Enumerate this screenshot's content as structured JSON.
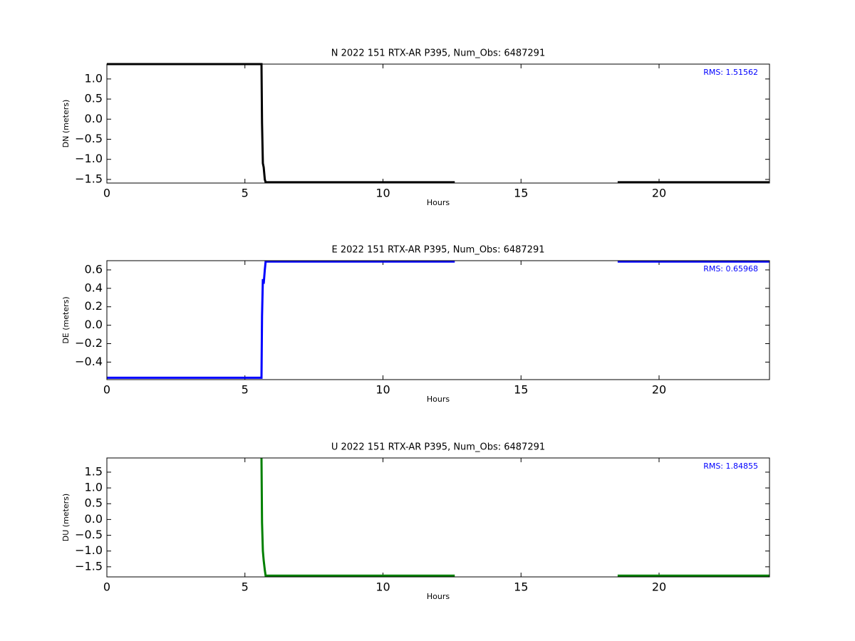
{
  "chart_data": [
    {
      "type": "line",
      "title": "N 2022 151 RTX-AR  P395, Num_Obs: 6487291",
      "xlabel": "Hours",
      "ylabel": "DN (meters)",
      "annotation": "RMS:  1.51562",
      "annotation_color": "#0000ff",
      "x": [
        0,
        5.6,
        5.62,
        5.65,
        5.68,
        5.72,
        5.75,
        12.6,
        15,
        18.5,
        24
      ],
      "values": [
        1.37,
        1.37,
        -0.1,
        -1.1,
        -1.2,
        -1.5,
        -1.57,
        -1.57,
        null,
        -1.57,
        -1.57
      ],
      "color": "#000000",
      "xlim": [
        0,
        24
      ],
      "xticks": [
        0,
        5,
        10,
        15,
        20
      ],
      "ylim": [
        -1.59,
        1.37
      ],
      "yticks": [
        {
          "value": -1.5,
          "label": "−1.5"
        },
        {
          "value": -1,
          "label": "−1.0"
        },
        {
          "value": -0.5,
          "label": "−0.5"
        },
        {
          "value": 0,
          "label": "0.0"
        },
        0.5,
        {
          "value": 1,
          "label": "1.0"
        }
      ]
    },
    {
      "type": "line",
      "title": "E 2022 151 RTX-AR  P395, Num_Obs: 6487291",
      "xlabel": "Hours",
      "ylabel": "DE (meters)",
      "annotation": "RMS:  0.65968",
      "annotation_color": "#0000ff",
      "x": [
        0,
        5.6,
        5.62,
        5.65,
        5.68,
        5.72,
        5.75,
        12.6,
        15,
        18.5,
        24
      ],
      "values": [
        -0.57,
        -0.57,
        0.1,
        0.5,
        0.45,
        0.6,
        0.69,
        0.69,
        null,
        0.69,
        0.69
      ],
      "color": "#0000ff",
      "xlim": [
        0,
        24
      ],
      "xticks": [
        0,
        5,
        10,
        15,
        20
      ],
      "ylim": [
        -0.59,
        0.7
      ],
      "yticks": [
        {
          "value": -0.4,
          "label": "−0.4"
        },
        {
          "value": -0.2,
          "label": "−0.2"
        },
        {
          "value": 0,
          "label": "0.0"
        },
        0.2,
        0.4,
        0.6
      ]
    },
    {
      "type": "line",
      "title": "U 2022 151 RTX-AR  P395, Num_Obs: 6487291",
      "xlabel": "Hours",
      "ylabel": "DU (meters)",
      "annotation": "RMS:  1.84855",
      "annotation_color": "#0000ff",
      "x": [
        0,
        5.6,
        5.62,
        5.65,
        5.68,
        5.72,
        5.75,
        12.6,
        15,
        18.5,
        24
      ],
      "values": [
        null,
        1.95,
        -0.1,
        -1.0,
        -1.3,
        -1.6,
        -1.78,
        -1.78,
        null,
        -1.78,
        -1.78
      ],
      "color": "#008000",
      "xlim": [
        0,
        24
      ],
      "xticks": [
        0,
        5,
        10,
        15,
        20
      ],
      "ylim": [
        -1.82,
        1.95
      ],
      "yticks": [
        {
          "value": -1.5,
          "label": "−1.5"
        },
        {
          "value": -1,
          "label": "−1.0"
        },
        {
          "value": -0.5,
          "label": "−0.5"
        },
        {
          "value": 0,
          "label": "0.0"
        },
        {
          "value": 0.5,
          "label": "0.5"
        },
        {
          "value": 1,
          "label": "1.0"
        },
        1.5
      ]
    }
  ]
}
